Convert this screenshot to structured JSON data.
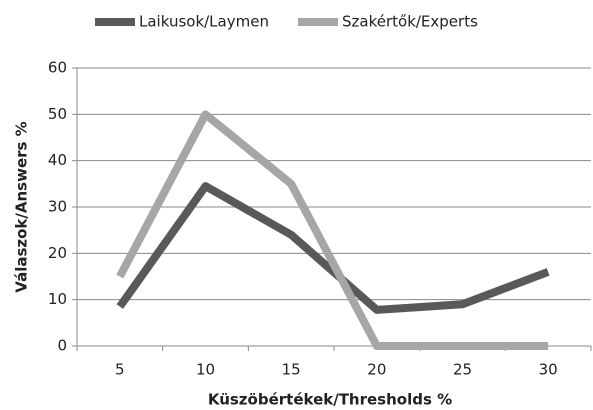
{
  "chart_data": {
    "type": "line",
    "categories": [
      "5",
      "10",
      "15",
      "20",
      "25",
      "30"
    ],
    "series": [
      {
        "name": "Laikusok/Laymen",
        "color": "#595959",
        "values": [
          8.5,
          34.5,
          24,
          7.8,
          9,
          16
        ]
      },
      {
        "name": "Szakértők/Experts",
        "color": "#a6a6a6",
        "values": [
          15,
          50,
          35,
          0,
          0,
          0
        ]
      }
    ],
    "xlabel": "Küszöbértékek/Thresholds %",
    "ylabel": "Válaszok/Answers %",
    "ylim": [
      0,
      60
    ],
    "yticks": [
      0,
      10,
      20,
      30,
      40,
      50,
      60
    ],
    "grid": true,
    "legend": "top"
  }
}
